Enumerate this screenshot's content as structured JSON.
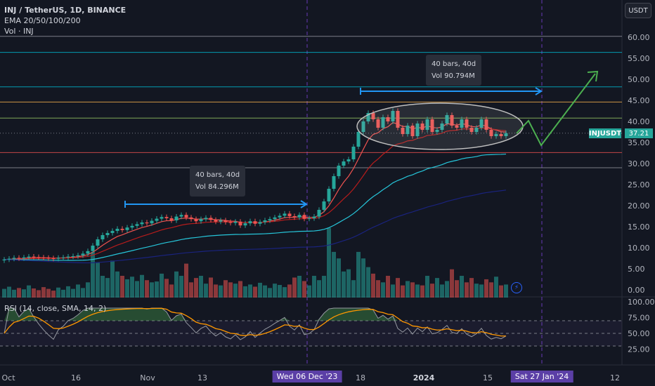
{
  "header": {
    "symbol_line": "INJ / TetherUS, 1D, BINANCE",
    "ema_line": "EMA 20/50/100/200",
    "vol_line": "Vol · INJ",
    "rsi_line": "RSI (14, close, SMA, 14, 2)"
  },
  "currency_button": "USDT",
  "symbol_tag": "INJUSDT",
  "price_tag": "37.21",
  "measure_boxes": [
    {
      "bars": "40 bars, 40d",
      "vol": "Vol 84.296M"
    },
    {
      "bars": "40 bars, 40d",
      "vol": "Vol 90.794M"
    }
  ],
  "x_axis_labels": [
    {
      "text": "Oct",
      "style": "normal"
    },
    {
      "text": "16",
      "style": "normal"
    },
    {
      "text": "Nov",
      "style": "normal"
    },
    {
      "text": "13",
      "style": "normal"
    },
    {
      "text": "Wed 06 Dec '23",
      "style": "highlight"
    },
    {
      "text": "18",
      "style": "normal"
    },
    {
      "text": "2024",
      "style": "bold"
    },
    {
      "text": "15",
      "style": "normal"
    },
    {
      "text": "Sat 27 Jan '24",
      "style": "highlight"
    },
    {
      "text": "12",
      "style": "normal"
    }
  ],
  "price_axis_labels": [
    "60.00",
    "55.00",
    "50.00",
    "45.00",
    "40.00",
    "35.00",
    "30.00",
    "25.00",
    "20.00",
    "15.00",
    "10.00",
    "5.00",
    "0.00"
  ],
  "rsi_axis_labels": [
    "100.00",
    "75.00",
    "50.00",
    "25.00"
  ],
  "colors": {
    "background": "#131722",
    "up": "#26a69a",
    "down": "#ef5350",
    "ema20": "#ef5350",
    "ema50": "#b71c1c",
    "ema100": "#26c6da",
    "ema200": "#1a237e",
    "measure_arrow": "#2196f3",
    "projection": "#4caf50",
    "rsi_line": "#9598a1",
    "rsi_ma": "#ff9800"
  },
  "chart_data": {
    "type": "candlestick",
    "symbol": "INJ / TetherUS",
    "timeframe": "1D",
    "exchange": "BINANCE",
    "indicators": [
      "EMA 20",
      "EMA 50",
      "EMA 100",
      "EMA 200",
      "Volume",
      "RSI (14)"
    ],
    "price_range": [
      0,
      60
    ],
    "last_price": 37.21,
    "horizontal_levels": [
      60.2,
      56.4,
      48.2,
      44.6,
      40.8,
      32.6,
      29.0
    ],
    "closes": [
      7.2,
      7.4,
      7.6,
      7.5,
      7.7,
      7.9,
      7.8,
      7.7,
      7.6,
      7.5,
      7.4,
      7.6,
      7.7,
      7.9,
      8.0,
      8.2,
      8.6,
      9.2,
      10.5,
      12.0,
      13.0,
      13.5,
      14.0,
      14.5,
      14.2,
      14.8,
      15.2,
      15.6,
      16.0,
      15.8,
      16.4,
      16.9,
      17.3,
      17.0,
      16.5,
      17.4,
      17.8,
      17.2,
      16.8,
      16.3,
      16.8,
      17.1,
      16.6,
      16.2,
      16.5,
      16.1,
      15.9,
      16.2,
      15.3,
      15.8,
      16.3,
      15.7,
      16.1,
      16.5,
      16.8,
      17.2,
      17.6,
      18.1,
      17.5,
      17.2,
      17.8,
      16.9,
      17.0,
      17.4,
      19.0,
      21.0,
      24.0,
      27.0,
      29.5,
      30.5,
      31.0,
      34.0,
      37.5,
      40.0,
      42.0,
      40.5,
      38.5,
      41.0,
      40.0,
      42.5,
      38.5,
      37.0,
      39.0,
      36.5,
      39.5,
      38.0,
      40.5,
      37.5,
      38.0,
      39.5,
      41.5,
      39.0,
      38.5,
      40.5,
      38.5,
      37.5,
      38.5,
      40.5,
      38.0,
      36.5,
      37.0,
      36.5,
      37.21
    ],
    "volumes": [
      2.0,
      2.5,
      1.8,
      2.2,
      1.9,
      2.8,
      2.1,
      1.7,
      2.4,
      2.0,
      1.6,
      2.3,
      1.8,
      2.6,
      2.0,
      3.0,
      2.2,
      3.5,
      10.5,
      8.0,
      5.0,
      4.5,
      8.5,
      6.0,
      5.0,
      4.2,
      4.8,
      3.8,
      5.2,
      4.0,
      3.5,
      3.7,
      5.5,
      4.3,
      3.0,
      6.0,
      5.0,
      7.8,
      3.5,
      4.5,
      5.0,
      3.2,
      4.6,
      3.0,
      2.8,
      4.0,
      3.5,
      3.2,
      3.8,
      2.6,
      3.0,
      2.5,
      3.4,
      2.8,
      2.2,
      3.2,
      2.9,
      2.4,
      3.0,
      4.6,
      5.0,
      3.8,
      2.8,
      5.0,
      4.0,
      5.0,
      16.0,
      10.5,
      9.0,
      6.0,
      6.5,
      4.0,
      10.5,
      9.0,
      7.0,
      5.5,
      4.0,
      3.5,
      5.0,
      3.0,
      4.5,
      2.8,
      3.8,
      3.5,
      3.0,
      2.8,
      5.0,
      3.2,
      4.5,
      3.0,
      3.8,
      6.5,
      4.0,
      5.0,
      3.5,
      4.5,
      3.2,
      3.0,
      4.2,
      3.5,
      4.8,
      2.8,
      3.0
    ]
  }
}
